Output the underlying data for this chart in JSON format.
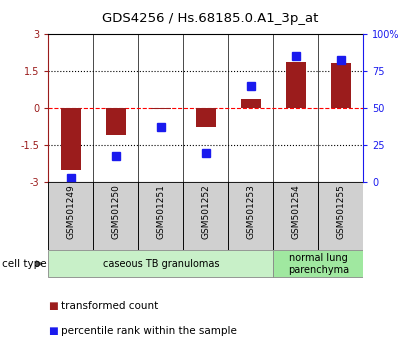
{
  "title": "GDS4256 / Hs.68185.0.A1_3p_at",
  "samples": [
    "GSM501249",
    "GSM501250",
    "GSM501251",
    "GSM501252",
    "GSM501253",
    "GSM501254",
    "GSM501255"
  ],
  "transformed_count": [
    -2.5,
    -1.1,
    -0.05,
    -0.75,
    0.35,
    1.85,
    1.8
  ],
  "percentile_rank": [
    3,
    18,
    37,
    20,
    65,
    85,
    82
  ],
  "red_color": "#9b1c1c",
  "blue_color": "#1a1aee",
  "ylim_left": [
    -3,
    3
  ],
  "ylim_right": [
    0,
    100
  ],
  "yticks_left": [
    -3,
    -1.5,
    0,
    1.5,
    3
  ],
  "ytick_labels_left": [
    "-3",
    "-1.5",
    "0",
    "1.5",
    "3"
  ],
  "yticks_right": [
    0,
    25,
    50,
    75,
    100
  ],
  "ytick_labels_right": [
    "0",
    "25",
    "50",
    "75",
    "100%"
  ],
  "cell_type_groups": [
    {
      "label": "caseous TB granulomas",
      "start": 0,
      "end": 5,
      "color": "#c8f0c8"
    },
    {
      "label": "normal lung\nparenchyma",
      "start": 5,
      "end": 7,
      "color": "#a0e8a0"
    }
  ],
  "cell_type_label": "cell type",
  "legend_entries": [
    {
      "label": "transformed count",
      "color": "#9b1c1c"
    },
    {
      "label": "percentile rank within the sample",
      "color": "#1a1aee"
    }
  ],
  "bar_width": 0.45,
  "marker_size": 6,
  "bg_color": "#ffffff"
}
